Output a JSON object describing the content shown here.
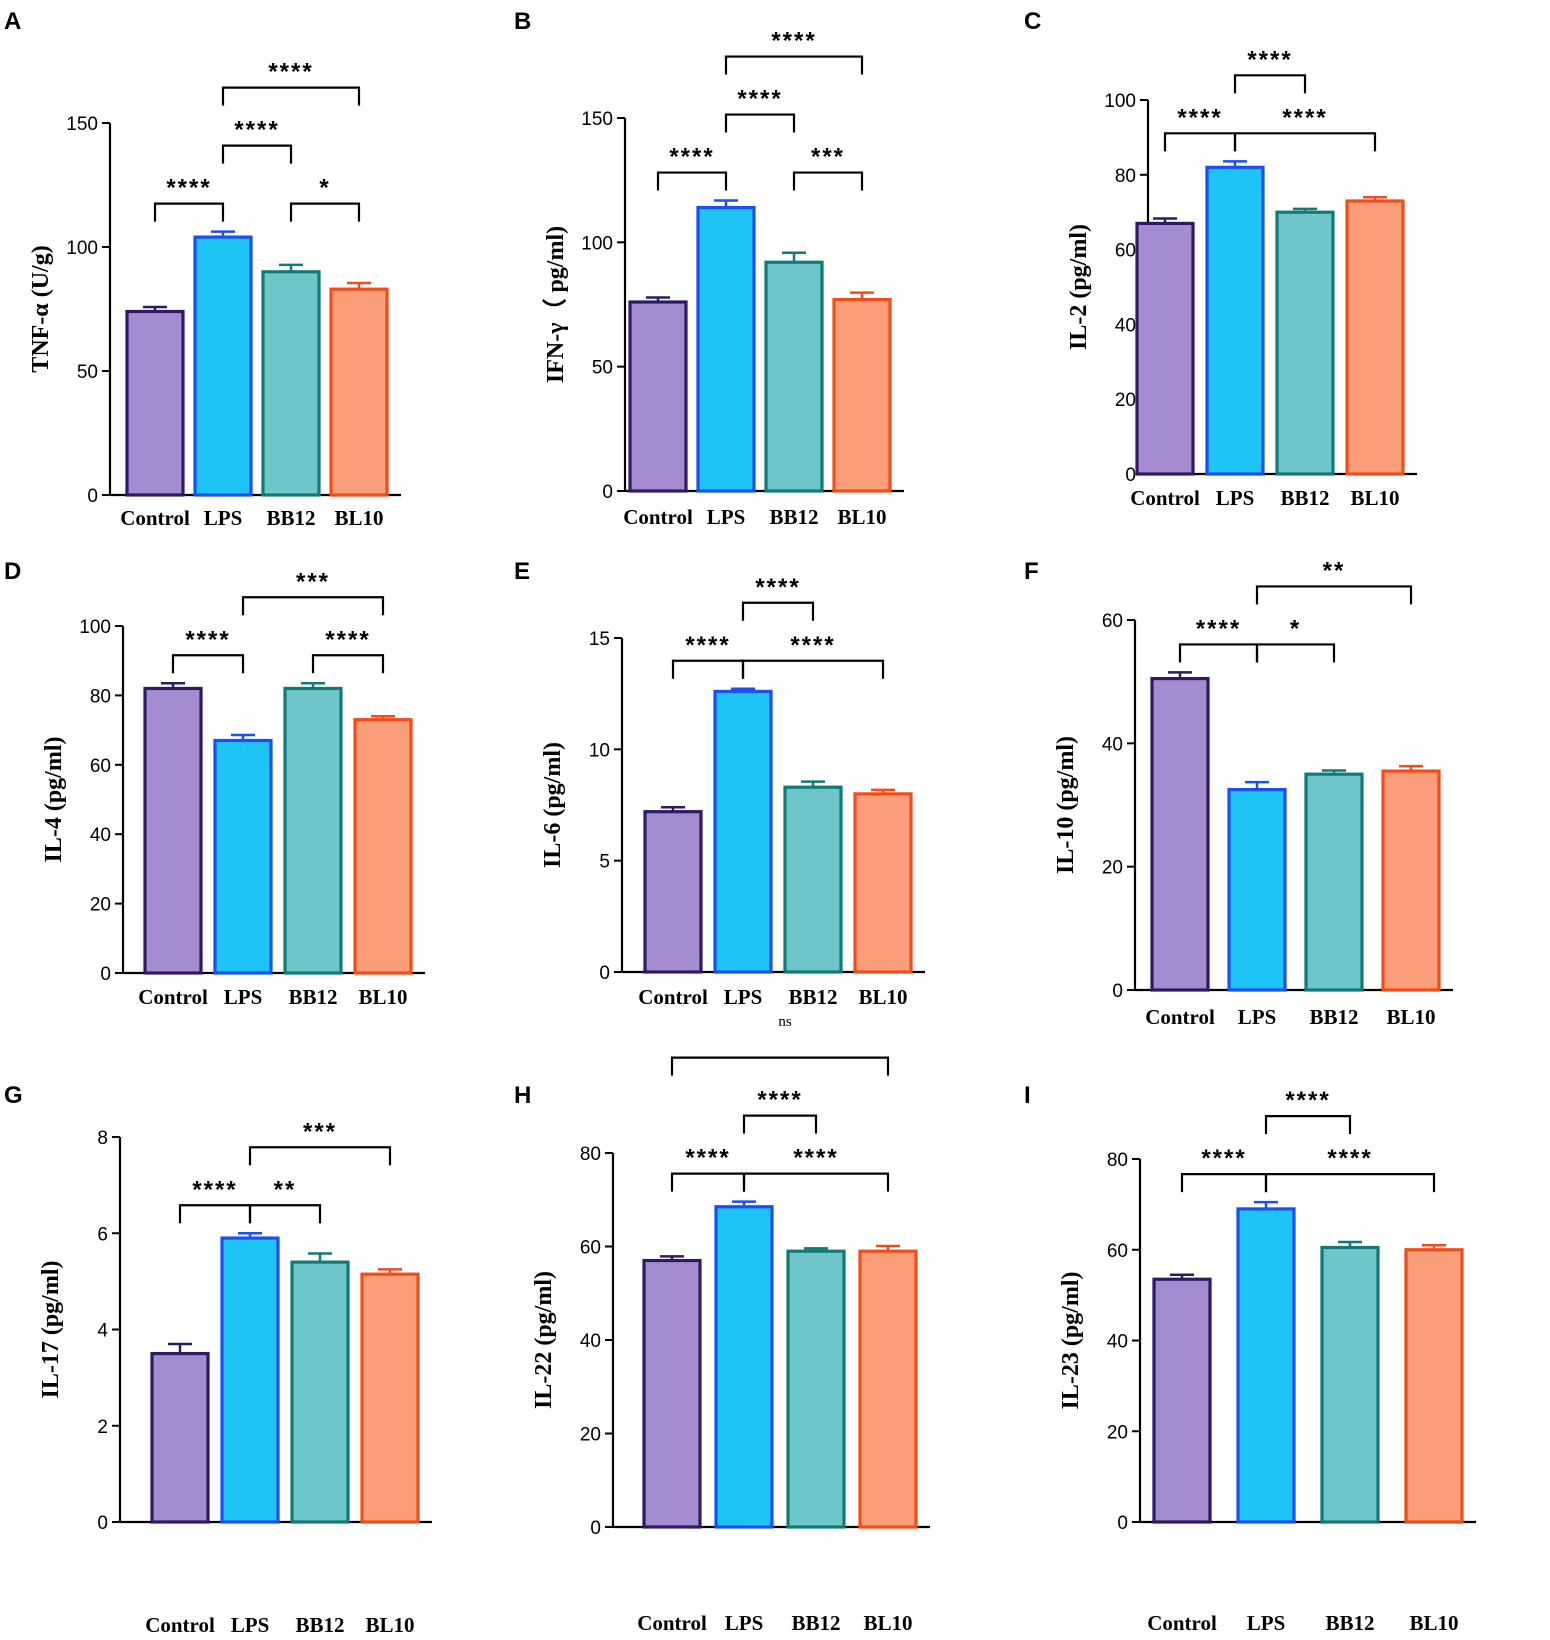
{
  "colors": {
    "bar_fill": [
      "#a58bcf",
      "#1fc4f7",
      "#6fc6c9",
      "#fa9e7a"
    ],
    "bar_edge": [
      "#2e1a63",
      "#1a4ff0",
      "#117a78",
      "#f04d1a"
    ],
    "axis": "#000000"
  },
  "chart_data": [
    {
      "id": "A",
      "type": "bar",
      "letter": "A",
      "ylabel": "TNF-α  (U/g)",
      "categories": [
        "Control",
        "LPS",
        "BB12",
        "BL10"
      ],
      "values": [
        74,
        104,
        90,
        83
      ],
      "errors": [
        1.8,
        2.2,
        2.8,
        2.5
      ],
      "ylim": [
        0,
        150
      ],
      "yticks": [
        "0",
        "50",
        "100",
        "150"
      ],
      "ytick_values": [
        0,
        50,
        100,
        150
      ],
      "significance": [
        {
          "from": 0,
          "to": 1,
          "level": 1,
          "label": "****"
        },
        {
          "from": 2,
          "to": 3,
          "level": 1,
          "label": "*"
        },
        {
          "from": 1,
          "to": 2,
          "level": 2,
          "label": "****"
        },
        {
          "from": 1,
          "to": 3,
          "level": 3,
          "label": "****"
        }
      ]
    },
    {
      "id": "B",
      "type": "bar",
      "letter": "B",
      "ylabel": "IFN-γ（ pg/ml)",
      "categories": [
        "Control",
        "LPS",
        "BB12",
        "BL10"
      ],
      "values": [
        76,
        114,
        92,
        77
      ],
      "errors": [
        1.8,
        2.8,
        3.8,
        2.8
      ],
      "ylim": [
        0,
        150
      ],
      "yticks": [
        "0",
        "50",
        "100",
        "150"
      ],
      "ytick_values": [
        0,
        50,
        100,
        150
      ],
      "significance": [
        {
          "from": 0,
          "to": 1,
          "level": 1,
          "label": "****"
        },
        {
          "from": 2,
          "to": 3,
          "level": 1,
          "label": "***"
        },
        {
          "from": 1,
          "to": 2,
          "level": 2,
          "label": "****"
        },
        {
          "from": 1,
          "to": 3,
          "level": 3,
          "label": "****"
        }
      ]
    },
    {
      "id": "C",
      "type": "bar",
      "letter": "C",
      "ylabel": "IL-2  (pg/ml)",
      "categories": [
        "Control",
        "LPS",
        "BB12",
        "BL10"
      ],
      "values": [
        67,
        82,
        70,
        73
      ],
      "errors": [
        1.3,
        1.6,
        0.9,
        1.0
      ],
      "ylim": [
        0,
        100
      ],
      "yticks": [
        "0",
        "20",
        "40",
        "60",
        "80",
        "100"
      ],
      "ytick_values": [
        0,
        20,
        40,
        60,
        80,
        100
      ],
      "significance": [
        {
          "from": 0,
          "to": 1,
          "level": 1,
          "label": "****"
        },
        {
          "from": 1,
          "to": 3,
          "level": 1,
          "label": "****"
        },
        {
          "from": 1,
          "to": 2,
          "level": 2,
          "label": "****"
        }
      ]
    },
    {
      "id": "D",
      "type": "bar",
      "letter": "D",
      "ylabel": "IL-4 (pg/ml)",
      "categories": [
        "Control",
        "LPS",
        "BB12",
        "BL10"
      ],
      "values": [
        82,
        67,
        82,
        73
      ],
      "errors": [
        1.5,
        1.6,
        1.5,
        1.0
      ],
      "ylim": [
        0,
        100
      ],
      "yticks": [
        "0",
        "20",
        "40",
        "60",
        "80",
        "100"
      ],
      "ytick_values": [
        0,
        20,
        40,
        60,
        80,
        100
      ],
      "significance": [
        {
          "from": 0,
          "to": 1,
          "level": 1,
          "label": "****"
        },
        {
          "from": 2,
          "to": 3,
          "level": 1,
          "label": "****"
        },
        {
          "from": 1,
          "to": 3,
          "level": 2,
          "label": "***"
        }
      ]
    },
    {
      "id": "E",
      "type": "bar",
      "letter": "E",
      "ylabel": "IL-6 (pg/ml)",
      "categories": [
        "Control",
        "LPS",
        "BB12",
        "BL10"
      ],
      "values": [
        7.2,
        12.6,
        8.3,
        8.0
      ],
      "errors": [
        0.2,
        0.12,
        0.25,
        0.18
      ],
      "ylim": [
        0,
        15
      ],
      "yticks": [
        "0",
        "5",
        "10",
        "15"
      ],
      "ytick_values": [
        0,
        5,
        10,
        15
      ],
      "note": "ns",
      "significance": [
        {
          "from": 0,
          "to": 1,
          "level": 1,
          "label": "****"
        },
        {
          "from": 1,
          "to": 3,
          "level": 1,
          "label": "****"
        },
        {
          "from": 1,
          "to": 2,
          "level": 2,
          "label": "****"
        }
      ]
    },
    {
      "id": "F",
      "type": "bar",
      "letter": "F",
      "ylabel": "IL-10  (pg/ml)",
      "categories": [
        "Control",
        "LPS",
        "BB12",
        "BL10"
      ],
      "values": [
        50.5,
        32.5,
        35,
        35.5
      ],
      "errors": [
        1.0,
        1.2,
        0.6,
        0.8
      ],
      "ylim": [
        0,
        60
      ],
      "yticks": [
        "0",
        "20",
        "40",
        "60"
      ],
      "ytick_values": [
        0,
        20,
        40,
        60
      ],
      "significance": [
        {
          "from": 0,
          "to": 1,
          "level": 1,
          "label": "****"
        },
        {
          "from": 1,
          "to": 2,
          "level": 1,
          "label": "*"
        },
        {
          "from": 1,
          "to": 3,
          "level": 2,
          "label": "**"
        }
      ]
    },
    {
      "id": "G",
      "type": "bar",
      "letter": "G",
      "ylabel": "IL-17  (pg/ml)",
      "categories": [
        "Control",
        "LPS",
        "BB12",
        "BL10"
      ],
      "values": [
        3.5,
        5.9,
        5.4,
        5.15
      ],
      "errors": [
        0.2,
        0.1,
        0.18,
        0.1
      ],
      "ylim": [
        0,
        8
      ],
      "yticks": [
        "0",
        "2",
        "4",
        "6",
        "8"
      ],
      "ytick_values": [
        0,
        2,
        4,
        6,
        8
      ],
      "significance": [
        {
          "from": 0,
          "to": 1,
          "level": 1,
          "label": "****"
        },
        {
          "from": 1,
          "to": 2,
          "level": 1,
          "label": "**"
        },
        {
          "from": 1,
          "to": 3,
          "level": 2,
          "label": "***"
        }
      ]
    },
    {
      "id": "H",
      "type": "bar",
      "letter": "H",
      "ylabel": "IL-22  (pg/ml)",
      "categories": [
        "Control",
        "LPS",
        "BB12",
        "BL10"
      ],
      "values": [
        57,
        68.5,
        59,
        59
      ],
      "errors": [
        0.9,
        1.1,
        0.6,
        1.1
      ],
      "ylim": [
        0,
        80
      ],
      "yticks": [
        "0",
        "20",
        "40",
        "60",
        "80"
      ],
      "ytick_values": [
        0,
        20,
        40,
        60,
        80
      ],
      "significance": [
        {
          "from": 0,
          "to": 1,
          "level": 1,
          "label": "****"
        },
        {
          "from": 1,
          "to": 3,
          "level": 1,
          "label": "****"
        },
        {
          "from": 1,
          "to": 2,
          "level": 2,
          "label": "****"
        },
        {
          "from": 0,
          "to": 3,
          "level": 3,
          "label": ""
        }
      ]
    },
    {
      "id": "I",
      "type": "bar",
      "letter": "I",
      "ylabel": "IL-23  (pg/ml)",
      "categories": [
        "Control",
        "LPS",
        "BB12",
        "BL10"
      ],
      "values": [
        53.5,
        69,
        60.5,
        60
      ],
      "errors": [
        1.0,
        1.5,
        1.2,
        1.0
      ],
      "ylim": [
        0,
        80
      ],
      "yticks": [
        "0",
        "20",
        "40",
        "60",
        "80"
      ],
      "ytick_values": [
        0,
        20,
        40,
        60,
        80
      ],
      "significance": [
        {
          "from": 0,
          "to": 1,
          "level": 1,
          "label": "****"
        },
        {
          "from": 1,
          "to": 3,
          "level": 1,
          "label": "****"
        },
        {
          "from": 1,
          "to": 2,
          "level": 2,
          "label": "****"
        }
      ]
    }
  ]
}
